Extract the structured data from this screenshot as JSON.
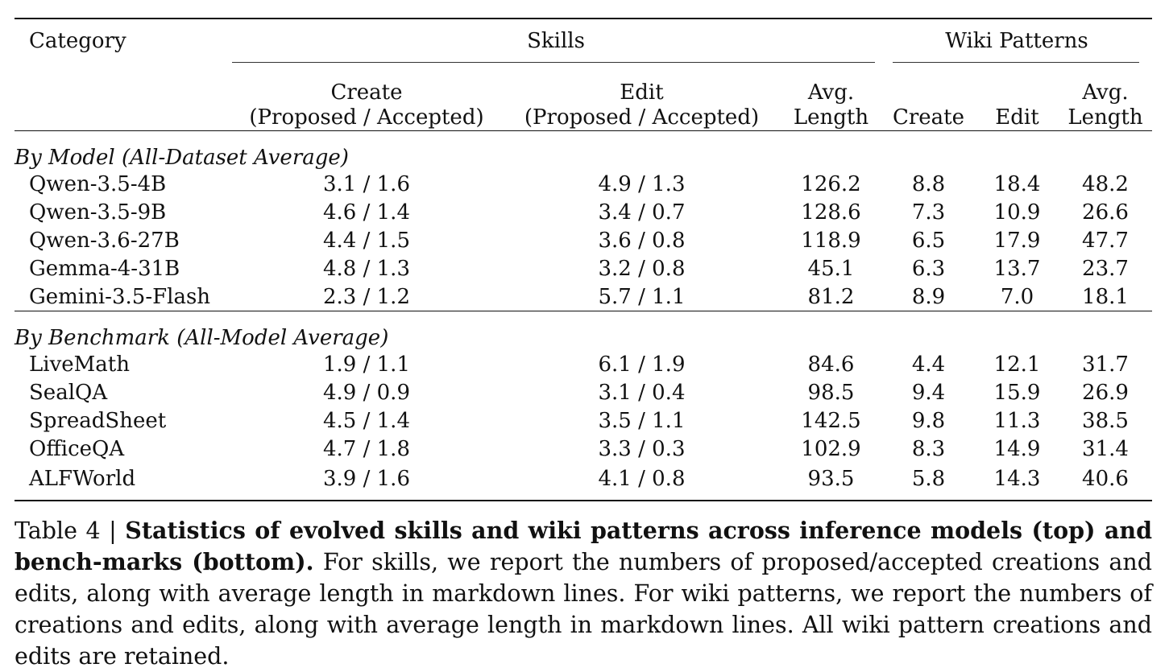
{
  "table": {
    "header": {
      "category": "Category",
      "skills_group": "Skills",
      "wiki_group": "Wiki Patterns",
      "skills_create_line1": "Create",
      "skills_create_line2": "(Proposed / Accepted)",
      "skills_edit_line1": "Edit",
      "skills_edit_line2": "(Proposed / Accepted)",
      "skills_avg_line1": "Avg.",
      "skills_avg_line2": "Length",
      "wiki_create": "Create",
      "wiki_edit": "Edit",
      "wiki_avg_line1": "Avg.",
      "wiki_avg_line2": "Length"
    },
    "sections": [
      {
        "title": "By Model (All-Dataset Average)",
        "rows": [
          {
            "name": "Qwen-3.5-4B",
            "skills_create": "3.1 / 1.6",
            "skills_edit": "4.9 / 1.3",
            "skills_avg": "126.2",
            "wiki_create": "8.8",
            "wiki_edit": "18.4",
            "wiki_avg": "48.2"
          },
          {
            "name": "Qwen-3.5-9B",
            "skills_create": "4.6 / 1.4",
            "skills_edit": "3.4 / 0.7",
            "skills_avg": "128.6",
            "wiki_create": "7.3",
            "wiki_edit": "10.9",
            "wiki_avg": "26.6"
          },
          {
            "name": "Qwen-3.6-27B",
            "skills_create": "4.4 / 1.5",
            "skills_edit": "3.6 / 0.8",
            "skills_avg": "118.9",
            "wiki_create": "6.5",
            "wiki_edit": "17.9",
            "wiki_avg": "47.7"
          },
          {
            "name": "Gemma-4-31B",
            "skills_create": "4.8 / 1.3",
            "skills_edit": "3.2 / 0.8",
            "skills_avg": "45.1",
            "wiki_create": "6.3",
            "wiki_edit": "13.7",
            "wiki_avg": "23.7"
          },
          {
            "name": "Gemini-3.5-Flash",
            "skills_create": "2.3 / 1.2",
            "skills_edit": "5.7 / 1.1",
            "skills_avg": "81.2",
            "wiki_create": "8.9",
            "wiki_edit": "7.0",
            "wiki_avg": "18.1"
          }
        ]
      },
      {
        "title": "By Benchmark (All-Model Average)",
        "rows": [
          {
            "name": "LiveMath",
            "skills_create": "1.9 / 1.1",
            "skills_edit": "6.1 / 1.9",
            "skills_avg": "84.6",
            "wiki_create": "4.4",
            "wiki_edit": "12.1",
            "wiki_avg": "31.7"
          },
          {
            "name": "SealQA",
            "skills_create": "4.9 / 0.9",
            "skills_edit": "3.1 / 0.4",
            "skills_avg": "98.5",
            "wiki_create": "9.4",
            "wiki_edit": "15.9",
            "wiki_avg": "26.9"
          },
          {
            "name": "SpreadSheet",
            "skills_create": "4.5 / 1.4",
            "skills_edit": "3.5 / 1.1",
            "skills_avg": "142.5",
            "wiki_create": "9.8",
            "wiki_edit": "11.3",
            "wiki_avg": "38.5"
          },
          {
            "name": "OfficeQA",
            "skills_create": "4.7 / 1.8",
            "skills_edit": "3.3 / 0.3",
            "skills_avg": "102.9",
            "wiki_create": "8.3",
            "wiki_edit": "14.9",
            "wiki_avg": "31.4"
          },
          {
            "name": "ALFWorld",
            "skills_create": "3.9 / 1.6",
            "skills_edit": "4.1 / 0.8",
            "skills_avg": "93.5",
            "wiki_create": "5.8",
            "wiki_edit": "14.3",
            "wiki_avg": "40.6"
          }
        ]
      }
    ]
  },
  "caption": {
    "label": "Table 4 | ",
    "bold": "Statistics of evolved skills and wiki patterns across inference models (top) and bench-marks (bottom).",
    "text": " For skills, we report the numbers of proposed/accepted creations and edits, along with average length in markdown lines. For wiki patterns, we report the numbers of creations and edits, along with average length in markdown lines. All wiki pattern creations and edits are retained."
  }
}
